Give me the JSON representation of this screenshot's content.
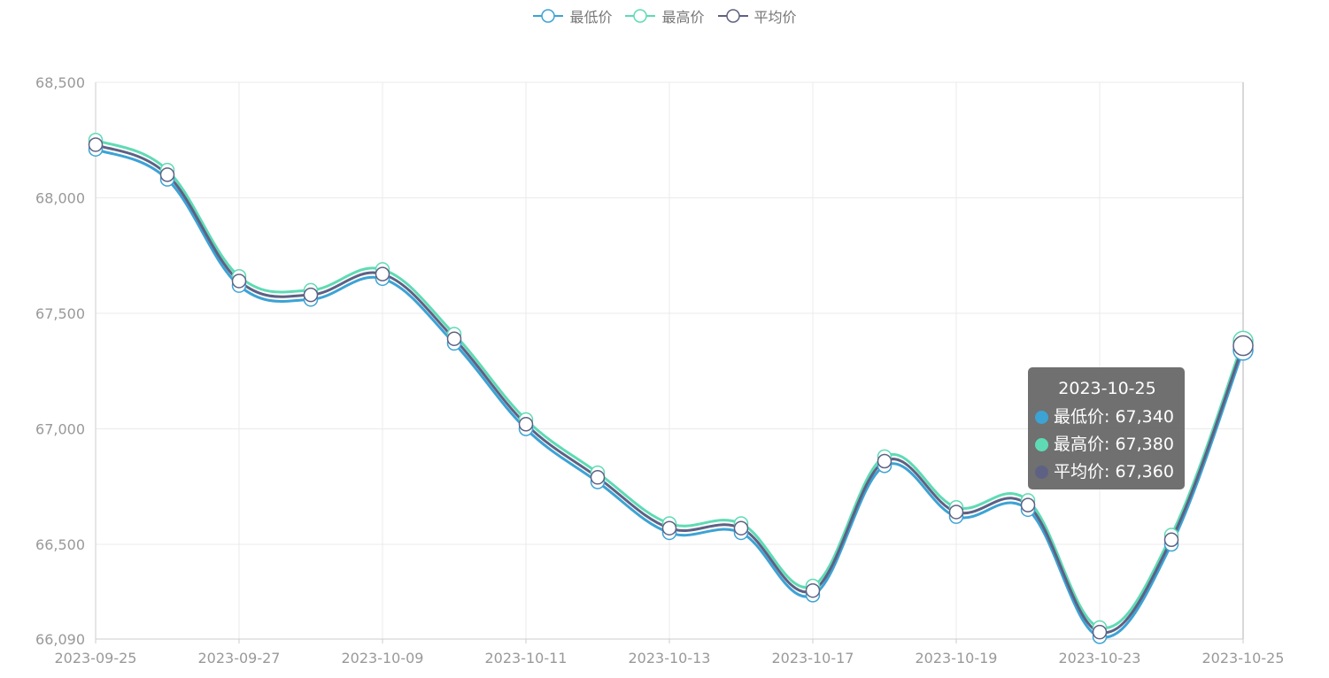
{
  "legend": [
    {
      "label": "最低价",
      "color": "#3ca3d4"
    },
    {
      "label": "最高价",
      "color": "#5edbb4"
    },
    {
      "label": "平均价",
      "color": "#5e6184"
    }
  ],
  "tooltip": {
    "date": "2023-10-25",
    "rows": [
      {
        "label": "最低价",
        "value": "67,340",
        "color": "#3ca3d4"
      },
      {
        "label": "最高价",
        "value": "67,380",
        "color": "#5edbb4"
      },
      {
        "label": "平均价",
        "value": "67,360",
        "color": "#5e6184"
      }
    ]
  },
  "chart_data": {
    "type": "line",
    "title": "",
    "xlabel": "",
    "ylabel": "",
    "ylim": [
      66090,
      68500
    ],
    "y_ticks": [
      66090,
      66500,
      67000,
      67500,
      68000,
      68500
    ],
    "y_tick_labels": [
      "66,090",
      "66,500",
      "67,000",
      "67,500",
      "68,000",
      "68,500"
    ],
    "x": [
      "2023-09-25",
      "2023-09-26",
      "2023-09-27",
      "2023-09-28",
      "2023-10-09",
      "2023-10-10",
      "2023-10-11",
      "2023-10-12",
      "2023-10-13",
      "2023-10-16",
      "2023-10-17",
      "2023-10-18",
      "2023-10-19",
      "2023-10-20",
      "2023-10-23",
      "2023-10-24",
      "2023-10-25"
    ],
    "x_tick_labels": [
      "2023-09-25",
      "2023-09-27",
      "2023-10-09",
      "2023-10-11",
      "2023-10-13",
      "2023-10-17",
      "2023-10-19",
      "2023-10-23",
      "2023-10-25"
    ],
    "series": [
      {
        "name": "最低价",
        "color": "#3ca3d4",
        "values": [
          68210,
          68080,
          67620,
          67560,
          67650,
          67370,
          67000,
          66770,
          66550,
          66550,
          66280,
          66840,
          66620,
          66650,
          66100,
          66500,
          67340
        ]
      },
      {
        "name": "最高价",
        "color": "#5edbb4",
        "values": [
          68250,
          68120,
          67660,
          67600,
          67690,
          67410,
          67040,
          66810,
          66590,
          66590,
          66320,
          66880,
          66660,
          66690,
          66140,
          66540,
          67380
        ]
      },
      {
        "name": "平均价",
        "color": "#5e6184",
        "values": [
          68230,
          68100,
          67640,
          67580,
          67670,
          67390,
          67020,
          66790,
          66570,
          66570,
          66300,
          66860,
          66640,
          66670,
          66120,
          66520,
          67360
        ]
      }
    ],
    "grid": true,
    "legend_position": "top-center"
  }
}
